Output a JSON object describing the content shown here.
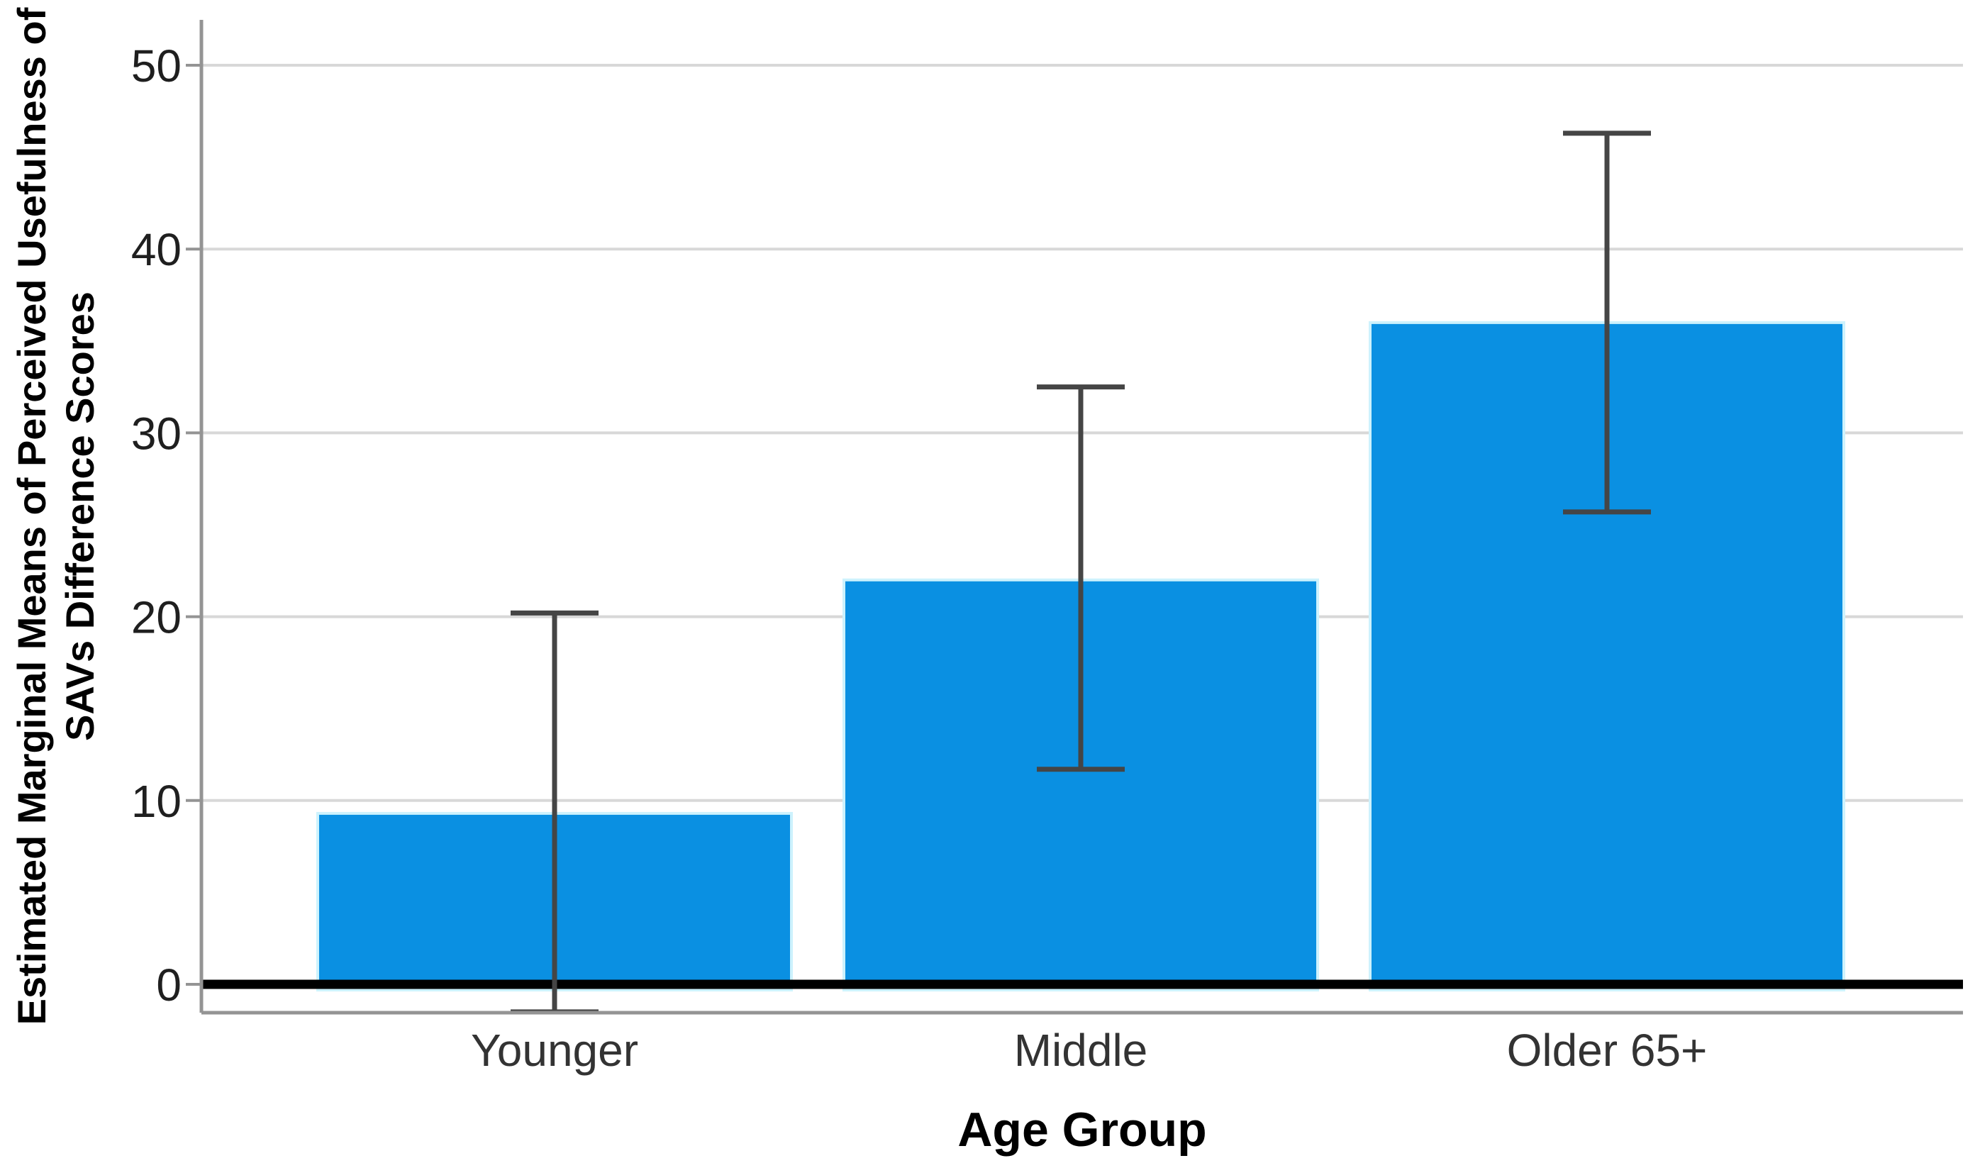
{
  "figure": {
    "background": "#ffffff"
  },
  "chart_data": {
    "type": "bar",
    "title": "",
    "xlabel": "Age Group",
    "ylabel": "Estimated Marginal Means of Perceived Usefulness of SAVs Difference Scores",
    "ylabel_lines": [
      "Estimated Marginal Means of Perceived Usefulness of",
      "SAVs Difference Scores"
    ],
    "categories": [
      "Younger",
      "Middle",
      "Older 65+"
    ],
    "values": [
      9.3,
      22,
      36
    ],
    "error_bars": [
      {
        "low": -1.5,
        "high": 20.2
      },
      {
        "low": 11.7,
        "high": 32.5
      },
      {
        "low": 25.7,
        "high": 46.3
      }
    ],
    "y_ticks": [
      0,
      10,
      20,
      30,
      40,
      50
    ],
    "ylim": [
      -1.5,
      52.5
    ],
    "grid": true,
    "legend": "none",
    "colors": {
      "bar": "#0a90e2",
      "bar_edge": "#cdf2fd",
      "error": "#454545",
      "gridline": "#d8d8d8",
      "axis": "#949494",
      "zero_line": "#000000",
      "tick_label": "#1f1f1f",
      "category_label": "#333333",
      "axis_title": "#000000"
    }
  }
}
